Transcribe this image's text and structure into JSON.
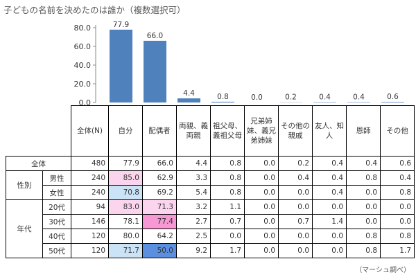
{
  "title": "子どもの名前を決めたのは誰か（複数選択可）",
  "source": "（マーシュ調べ）",
  "chart_data": {
    "type": "bar",
    "categories": [
      "自分",
      "配偶者",
      "両親、義両親",
      "祖父母、義祖父母",
      "兄弟姉妹、義兄弟姉妹",
      "その他の親戚",
      "友人、知人",
      "恩師",
      "その他"
    ],
    "values": [
      77.9,
      66.0,
      4.4,
      0.8,
      0.0,
      0.2,
      0.4,
      0.4,
      0.6
    ],
    "value_labels": [
      "77.9",
      "66.0",
      "4.4",
      "0.8",
      "0.0",
      "0.2",
      "0.4",
      "0.4",
      "0.6"
    ],
    "yticks": [
      "0.0",
      "20.0",
      "40.0",
      "60.0",
      "80.0"
    ],
    "ylim": [
      0,
      80
    ],
    "bar_color": "#4f81bd",
    "grid": false
  },
  "table": {
    "headers": [
      "全体(N)",
      "自分",
      "配偶者",
      "両親、義両親",
      "祖父母、義祖父母",
      "兄弟姉妹、義兄弟姉妹",
      "その他の親戚",
      "友人、知人",
      "恩師",
      "その他"
    ],
    "total_label": "全体",
    "total_values": [
      "480",
      "77.9",
      "66.0",
      "4.4",
      "0.8",
      "0.0",
      "0.2",
      "0.4",
      "0.4",
      "0.6"
    ],
    "groups": [
      {
        "label": "性別",
        "rows": [
          {
            "label": "男性",
            "values": [
              "240",
              "85.0",
              "62.9",
              "3.3",
              "0.8",
              "0.0",
              "0.4",
              "0.4",
              "0.8",
              "0.4"
            ]
          },
          {
            "label": "女性",
            "values": [
              "240",
              "70.8",
              "69.2",
              "5.4",
              "0.8",
              "0.0",
              "0.0",
              "0.4",
              "0.0",
              "0.8"
            ]
          }
        ]
      },
      {
        "label": "年代",
        "rows": [
          {
            "label": "20代",
            "values": [
              "94",
              "83.0",
              "71.3",
              "3.2",
              "1.1",
              "0.0",
              "0.0",
              "0.0",
              "0.0",
              "0.0"
            ]
          },
          {
            "label": "30代",
            "values": [
              "146",
              "78.1",
              "77.4",
              "2.7",
              "0.7",
              "0.0",
              "0.7",
              "1.4",
              "0.0",
              "0.0"
            ]
          },
          {
            "label": "40代",
            "values": [
              "120",
              "80.0",
              "64.2",
              "2.5",
              "0.0",
              "0.0",
              "0.0",
              "0.0",
              "0.8",
              "0.8"
            ]
          },
          {
            "label": "50代",
            "values": [
              "120",
              "71.7",
              "50.0",
              "9.2",
              "1.7",
              "0.0",
              "0.0",
              "0.0",
              "0.8",
              "1.7"
            ]
          }
        ]
      }
    ],
    "highlight_colors": {
      "pink_light": "#fbd5ee",
      "pink": "#f598d3",
      "blue_light": "#cbe3f6",
      "blue": "#5b8fdf"
    }
  }
}
